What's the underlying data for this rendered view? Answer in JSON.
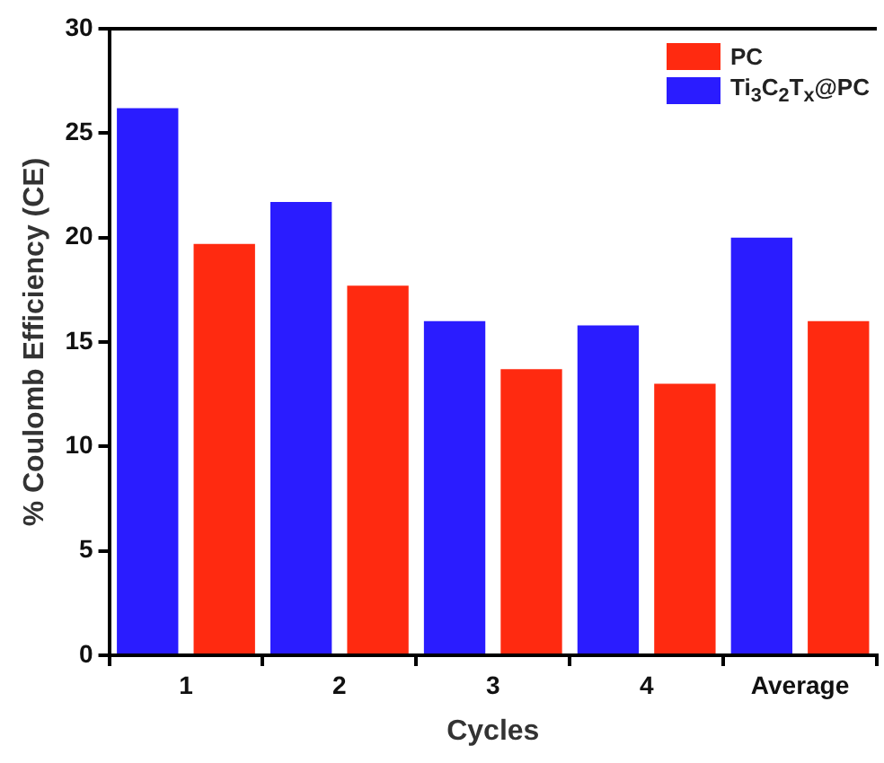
{
  "chart_data": {
    "type": "bar",
    "xlabel": "Cycles",
    "ylabel": "% Coulomb Efficiency (CE)",
    "categories": [
      "1",
      "2",
      "3",
      "4",
      "Average"
    ],
    "series": [
      {
        "name": "Ti$_{3}$C$_{2}$T$_{x}$@PC",
        "color": "#2a1cff",
        "values": [
          26.2,
          21.7,
          16.0,
          15.8,
          20.0
        ]
      },
      {
        "name": "PC",
        "color": "#ff2a10",
        "values": [
          19.7,
          17.7,
          13.7,
          13.0,
          16.0
        ]
      }
    ],
    "ylim": [
      0,
      30
    ],
    "yticks": [
      0,
      5,
      10,
      15,
      20,
      25,
      30
    ],
    "grid": false,
    "legend": "top right"
  }
}
